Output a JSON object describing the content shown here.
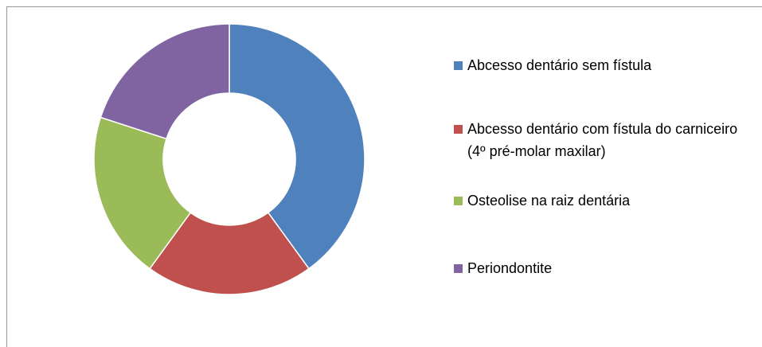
{
  "chart_data": {
    "type": "pie",
    "categories": [
      "Abcesso dentário sem fístula",
      "Abcesso dentário com fístula do carniceiro (4º pré-molar maxilar)",
      "Osteolise na raiz dentária",
      "Periondontite"
    ],
    "values": [
      40,
      20,
      20,
      20
    ],
    "colors": [
      "#4f81bd",
      "#c0504d",
      "#9bbb59",
      "#8064a2"
    ],
    "legend": "right"
  }
}
